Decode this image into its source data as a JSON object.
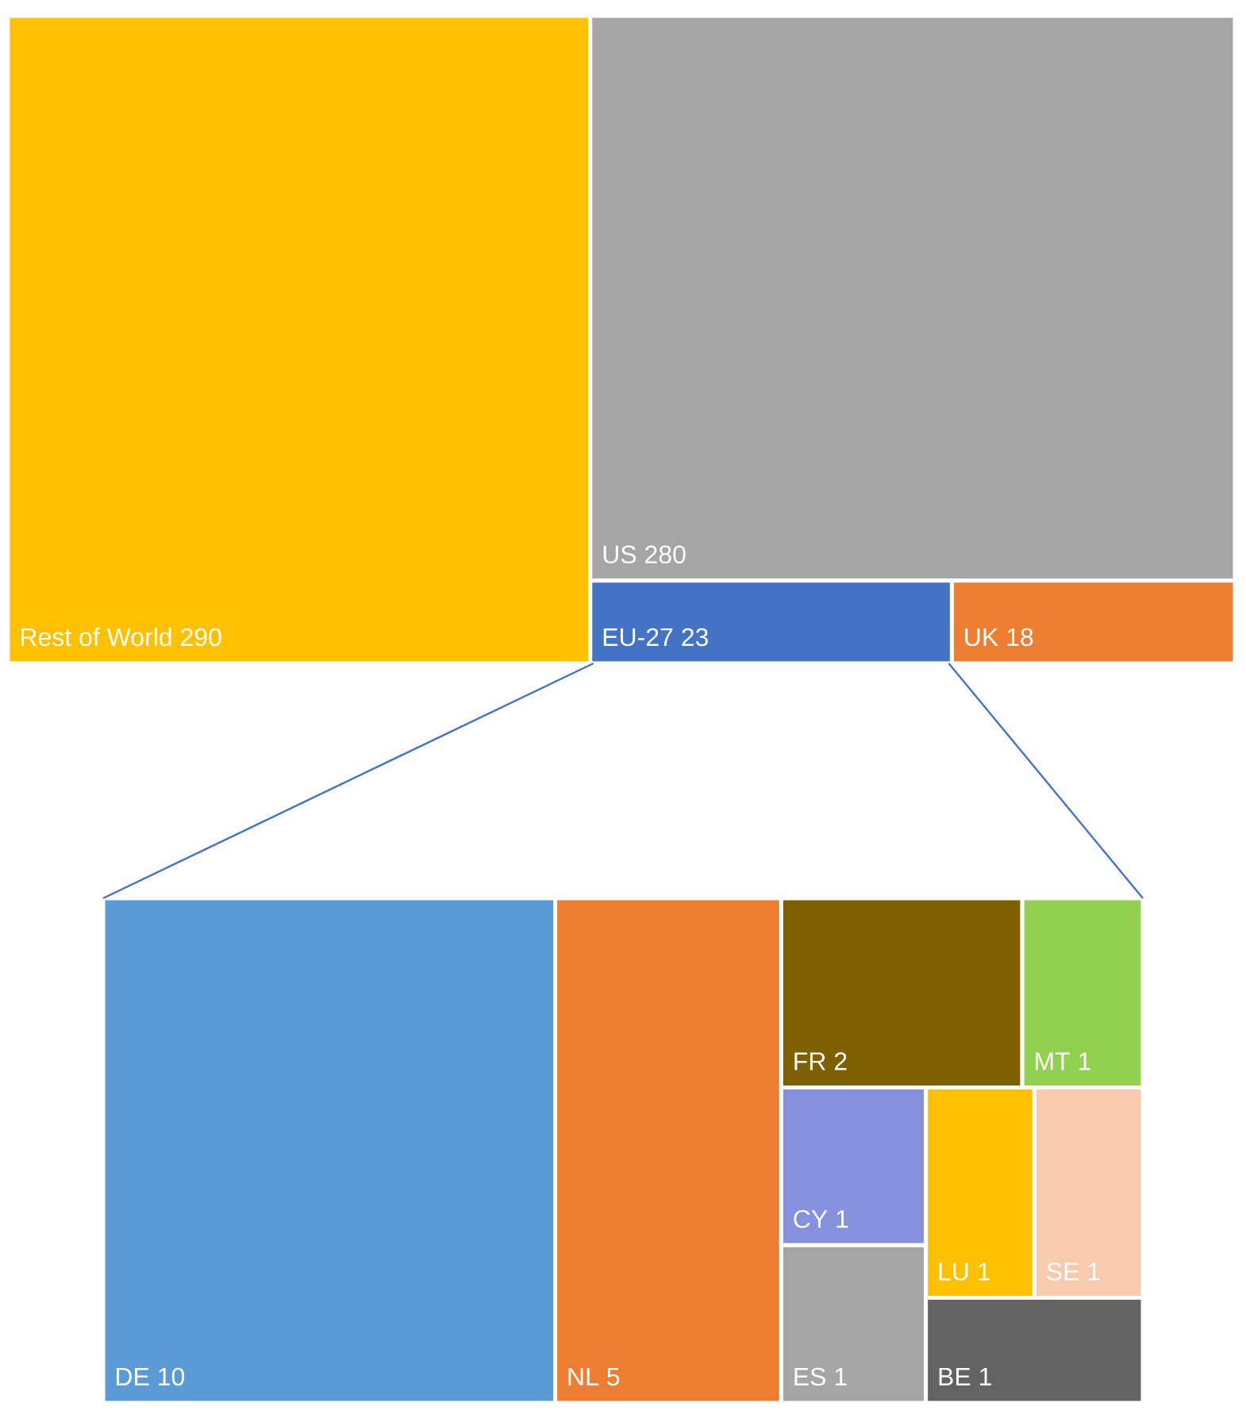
{
  "chart_data": [
    {
      "type": "other",
      "categories": [
        "Rest of World",
        "US",
        "EU-27",
        "UK"
      ],
      "values": [
        290,
        280,
        23,
        18
      ],
      "colors": [
        "#ffc000",
        "#a5a5a5",
        "#4472c4",
        "#ed7d31"
      ],
      "data_labels": true
    },
    {
      "type": "other",
      "categories": [
        "DE",
        "NL",
        "FR",
        "MT",
        "CY",
        "ES",
        "LU",
        "SE",
        "BE"
      ],
      "values": [
        10,
        5,
        2,
        1,
        1,
        1,
        1,
        1,
        1
      ],
      "colors": [
        "#5b9bd5",
        "#ed7d31",
        "#7f6000",
        "#92d050",
        "#8590de",
        "#a5a5a5",
        "#ffc000",
        "#f8cbad",
        "#636363"
      ],
      "data_labels": true
    }
  ]
}
